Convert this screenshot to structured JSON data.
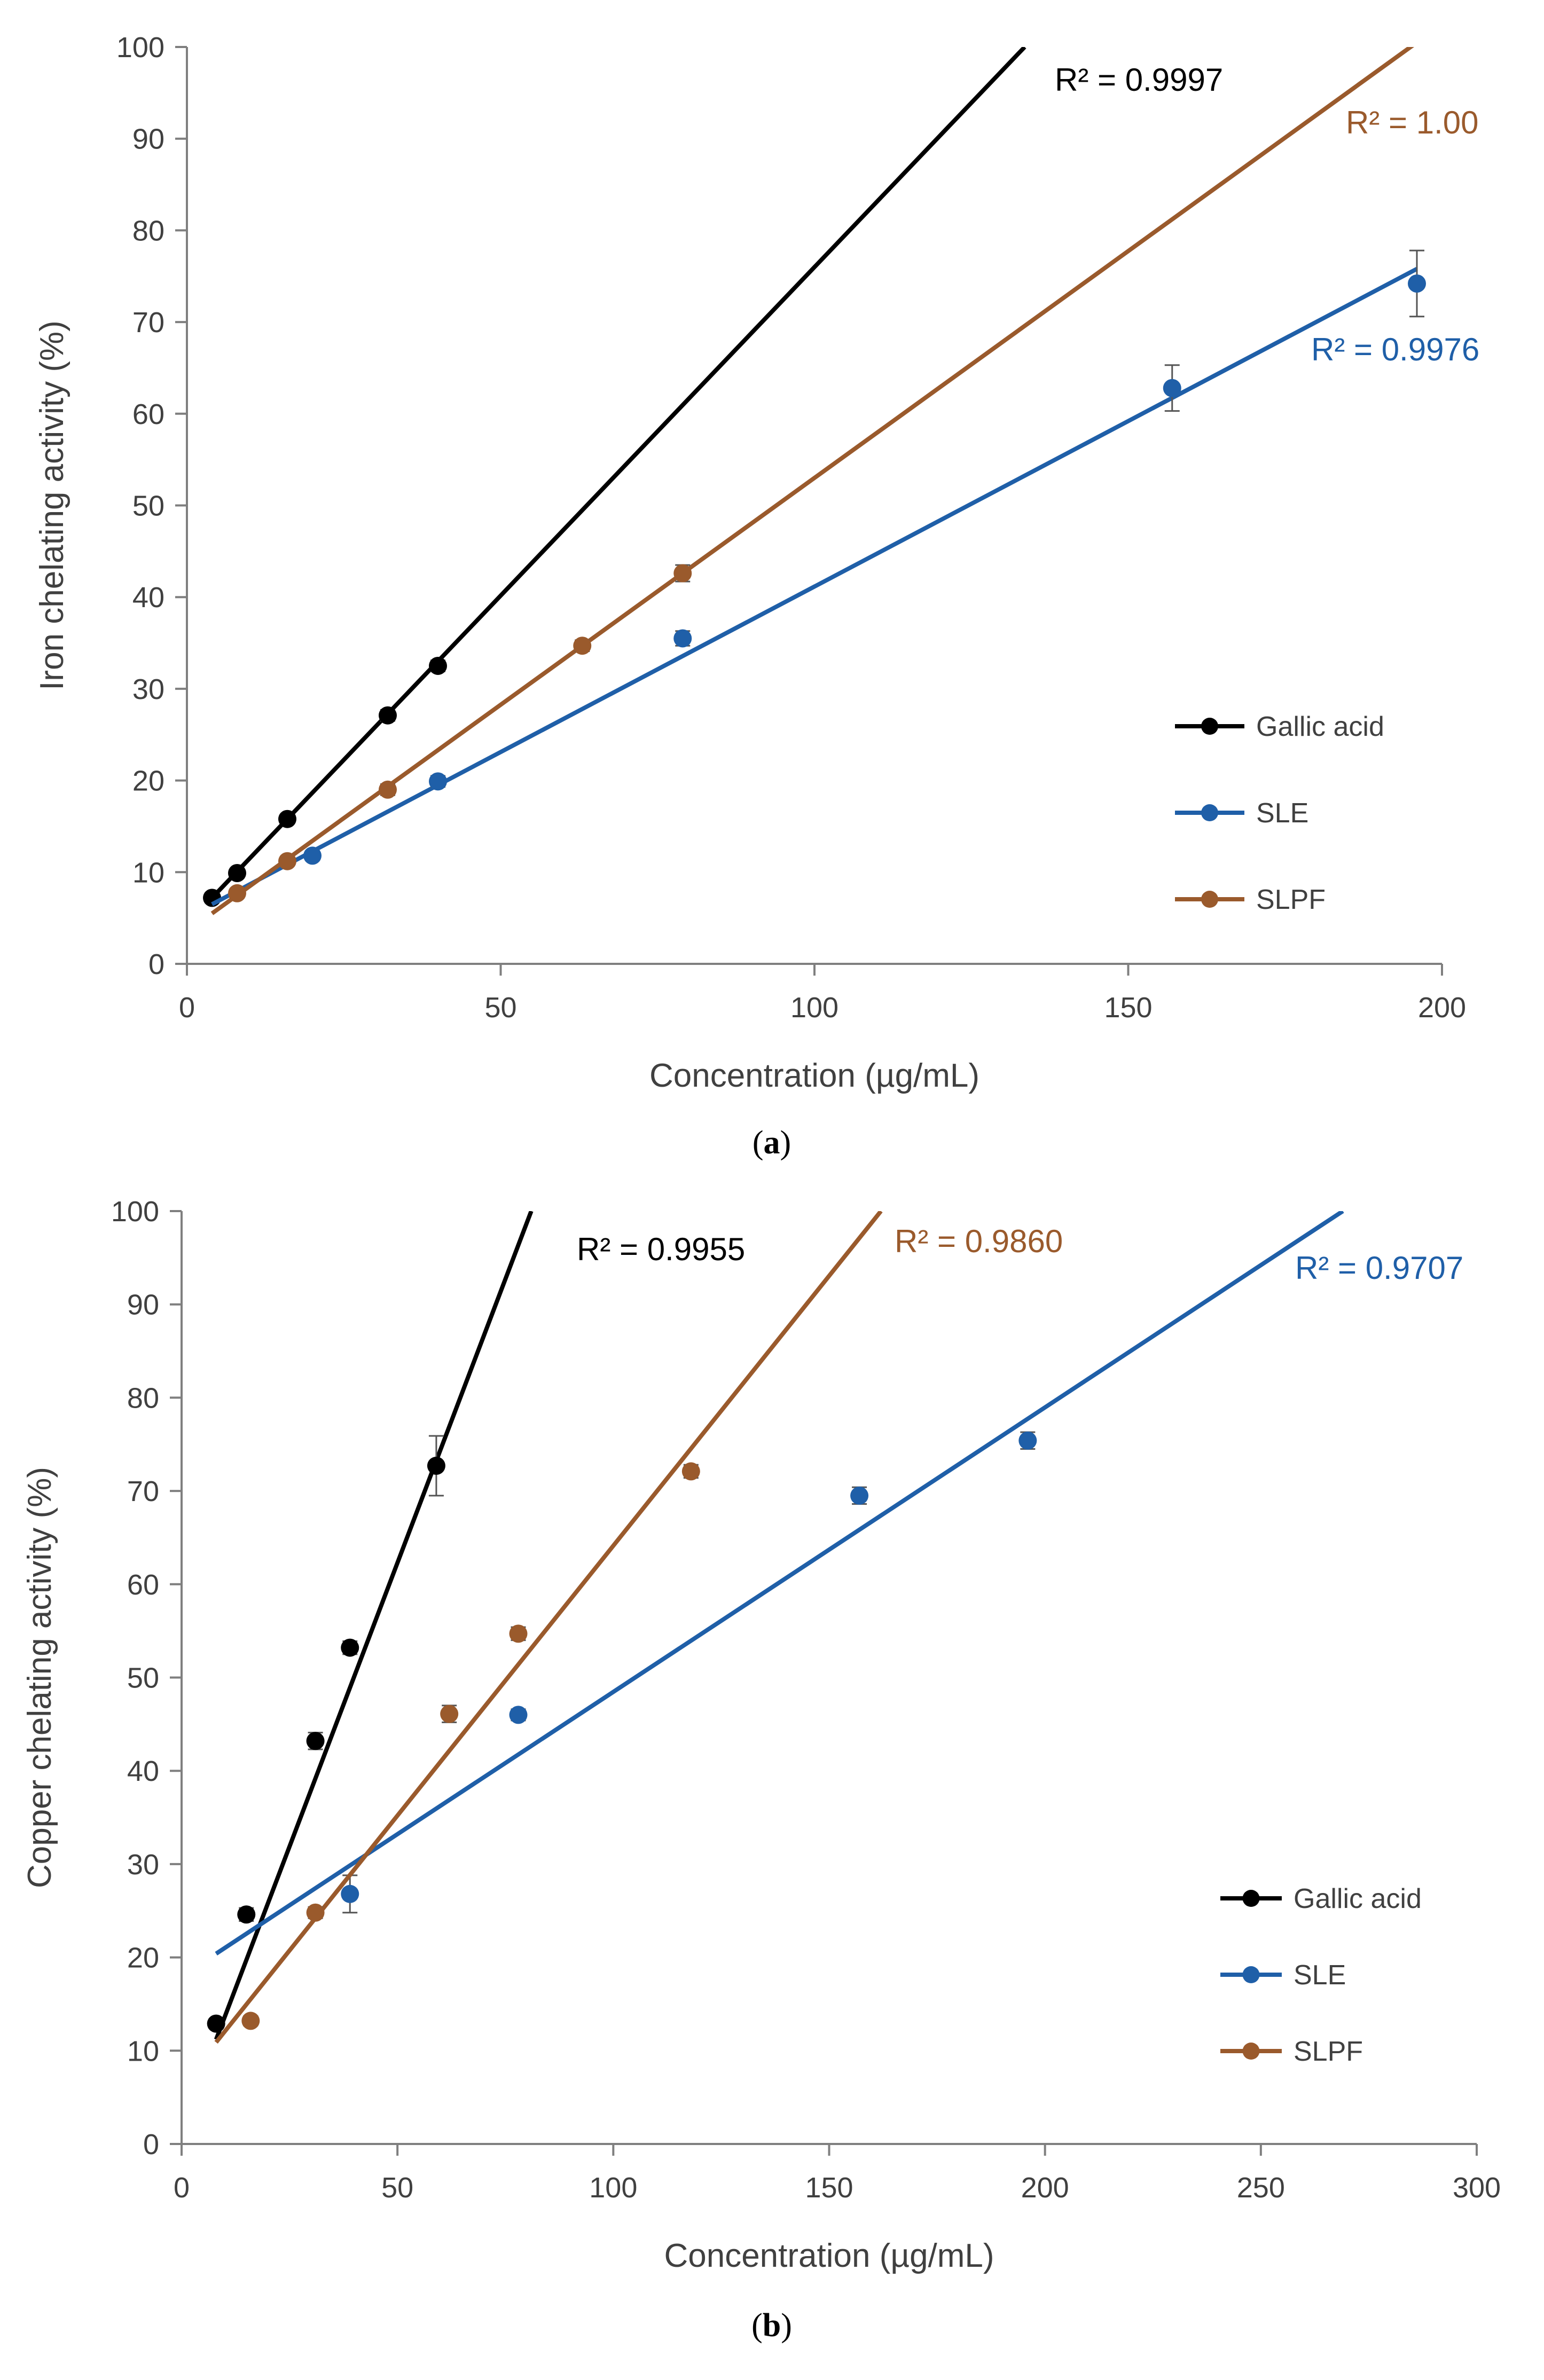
{
  "colors": {
    "gallic": "#000000",
    "sle": "#1f5fa8",
    "slpf": "#9a5a2c",
    "axis": "#7f7f7f",
    "text": "#404040"
  },
  "chart_data": [
    {
      "panel": "(a)",
      "panel_letter": "a",
      "type": "scatter",
      "xlabel": "Concentration (µg/mL)",
      "ylabel": "Iron chelating activity (%)",
      "xlim": [
        0,
        200
      ],
      "ylim": [
        0,
        100
      ],
      "xticks": [
        0,
        50,
        100,
        150,
        200
      ],
      "yticks": [
        0,
        10,
        20,
        30,
        40,
        50,
        60,
        70,
        80,
        90,
        100
      ],
      "legend": [
        "Gallic acid",
        "SLE",
        "SLPF"
      ],
      "series": [
        {
          "name": "Gallic acid",
          "key": "gallic",
          "x": [
            4,
            8,
            16,
            32,
            40
          ],
          "y": [
            7.2,
            9.9,
            15.8,
            27.1,
            32.5
          ],
          "err": [
            0.5,
            0.5,
            0.5,
            0.6,
            0.6
          ],
          "fit": [
            [
              4,
              7.2
            ],
            [
              133.5,
              100
            ]
          ],
          "r2": "R² = 0.9997"
        },
        {
          "name": "SLE",
          "key": "sle",
          "x": [
            20,
            40,
            79,
            157,
            196
          ],
          "y": [
            11.8,
            19.9,
            35.5,
            62.8,
            74.2
          ],
          "err": [
            0.5,
            0.6,
            0.8,
            2.5,
            3.6
          ],
          "fit": [
            [
              4,
              6.5
            ],
            [
              196,
              75.8
            ]
          ],
          "r2": "R² = 0.9976"
        },
        {
          "name": "SLPF",
          "key": "slpf",
          "x": [
            8,
            16,
            32,
            63,
            79
          ],
          "y": [
            7.7,
            11.2,
            19.0,
            34.7,
            42.6
          ],
          "err": [
            0.5,
            0.5,
            0.6,
            0.6,
            0.9
          ],
          "fit": [
            [
              4,
              5.5
            ],
            [
              196,
              100.5
            ]
          ],
          "r2": "R² = 1.00"
        }
      ]
    },
    {
      "panel": "(b)",
      "panel_letter": "b",
      "type": "scatter",
      "xlabel": "Concentration (µg/mL)",
      "ylabel": "Copper chelating activity (%)",
      "xlim": [
        0,
        300
      ],
      "ylim": [
        0,
        100
      ],
      "xticks": [
        0,
        50,
        100,
        150,
        200,
        250,
        300
      ],
      "yticks": [
        0,
        10,
        20,
        30,
        40,
        50,
        60,
        70,
        80,
        90,
        100
      ],
      "legend": [
        "Gallic acid",
        "SLE",
        "SLPF"
      ],
      "series": [
        {
          "name": "Gallic acid",
          "key": "gallic",
          "x": [
            8,
            15,
            31,
            39,
            59
          ],
          "y": [
            12.9,
            24.6,
            43.2,
            53.2,
            72.7
          ],
          "err": [
            0.5,
            0.7,
            0.9,
            0.7,
            3.2
          ],
          "fit": [
            [
              8,
              11.2
            ],
            [
              81,
              100
            ]
          ],
          "r2": "R² = 0.9955"
        },
        {
          "name": "SLE",
          "key": "sle",
          "x": [
            39,
            78,
            157,
            196
          ],
          "y": [
            26.8,
            46.0,
            69.5,
            75.4
          ],
          "err": [
            2.0,
            0.6,
            0.9,
            0.9
          ],
          "fit": [
            [
              8,
              20.4
            ],
            [
              269,
              100
            ]
          ],
          "r2": "R² = 0.9707"
        },
        {
          "name": "SLPF",
          "key": "slpf",
          "x": [
            16,
            31,
            62,
            78,
            118
          ],
          "y": [
            13.2,
            24.8,
            46.1,
            54.7,
            72.1
          ],
          "err": [
            0.5,
            0.6,
            0.9,
            0.7,
            0.7
          ],
          "fit": [
            [
              8,
              10.9
            ],
            [
              162,
              100
            ]
          ],
          "r2": "R² = 0.9860"
        }
      ]
    }
  ]
}
